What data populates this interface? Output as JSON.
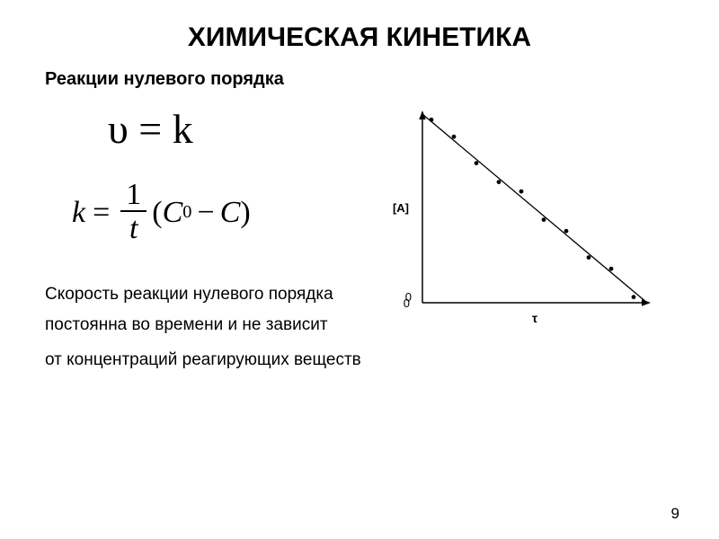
{
  "title": "ХИМИЧЕСКАЯ КИНЕТИКА",
  "subtitle": "Реакции нулевого порядка",
  "equation1": "υ = k",
  "equation2_lhs": "k",
  "equation2_frac_num": "1",
  "equation2_frac_den": "t",
  "equation2_c0": "C",
  "equation2_c0_sub": "0",
  "equation2_c": "C",
  "body_line1": "Скорость реакции нулевого порядка",
  "body_line2": "постоянна во времени и не зависит",
  "body_line3": "от концентраций реагирующих веществ",
  "page_number": "9",
  "chart": {
    "type": "scatter-line",
    "background_color": "#ffffff",
    "axis_color": "#000000",
    "axis_width": 1.5,
    "x_label": "τ",
    "y_label": "[A]",
    "x_origin_label": "0",
    "y_origin_label": "0",
    "label_fontsize": 13,
    "xlim": [
      0,
      100
    ],
    "ylim": [
      0,
      100
    ],
    "arrow_size": 6,
    "line": {
      "x1": 0,
      "y1": 100,
      "x2": 100,
      "y2": 0,
      "color": "#000000",
      "width": 1.3
    },
    "points": {
      "color": "#000000",
      "radius": 2.4,
      "data": [
        {
          "x": 4,
          "y": 97
        },
        {
          "x": 14,
          "y": 88
        },
        {
          "x": 24,
          "y": 74
        },
        {
          "x": 34,
          "y": 64
        },
        {
          "x": 44,
          "y": 59
        },
        {
          "x": 54,
          "y": 44
        },
        {
          "x": 64,
          "y": 38
        },
        {
          "x": 74,
          "y": 24
        },
        {
          "x": 84,
          "y": 18
        },
        {
          "x": 94,
          "y": 3
        }
      ]
    }
  }
}
